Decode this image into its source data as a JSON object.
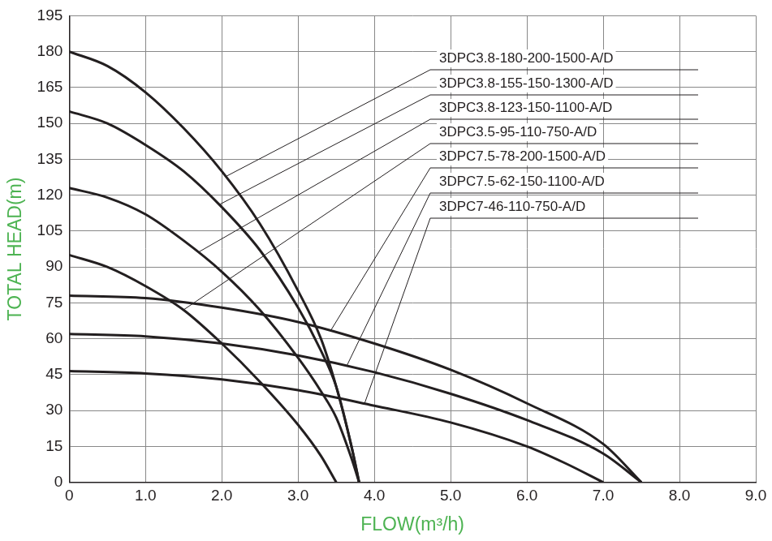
{
  "chart_data": {
    "type": "line",
    "x_label": "FLOW(m³/h)",
    "y_label": "TOTAL HEAD(m)",
    "xlim": [
      0,
      9
    ],
    "xticks": [
      0,
      {
        "value": 1,
        "label": "1.0"
      },
      {
        "value": 2,
        "label": "2.0"
      },
      {
        "value": 3,
        "label": "3.0"
      },
      {
        "value": 4,
        "label": "4.0"
      },
      {
        "value": 5,
        "label": "5.0"
      },
      {
        "value": 6,
        "label": "6.0"
      },
      {
        "value": 7,
        "label": "7.0"
      },
      {
        "value": 8,
        "label": "8.0"
      },
      {
        "value": 9,
        "label": "9.0"
      }
    ],
    "ylim": [
      0,
      195
    ],
    "yticks": [
      0,
      15,
      30,
      45,
      60,
      75,
      90,
      105,
      120,
      135,
      150,
      165,
      180,
      195
    ],
    "grid": true,
    "marker": "none",
    "line_style": "solid",
    "series": [
      {
        "name": "3DPC3.8-180-200-1500-A/D",
        "color": "#231f20",
        "x": [
          0,
          0.5,
          1,
          1.5,
          2,
          2.5,
          3,
          3.3,
          3.5,
          3.7,
          3.8
        ],
        "values": [
          180,
          174,
          163,
          148,
          130,
          108,
          80,
          60,
          40,
          15,
          0
        ]
      },
      {
        "name": "3DPC3.8-155-150-1300-A/D",
        "color": "#231f20",
        "x": [
          0,
          0.5,
          1,
          1.5,
          2,
          2.5,
          3,
          3.3,
          3.5,
          3.7,
          3.8
        ],
        "values": [
          155,
          150,
          141,
          130,
          115,
          97,
          73,
          55,
          40,
          15,
          0
        ]
      },
      {
        "name": "3DPC3.8-123-150-1100-A/D",
        "color": "#231f20",
        "x": [
          0,
          0.5,
          1,
          1.5,
          2,
          2.5,
          3,
          3.3,
          3.5,
          3.7,
          3.8
        ],
        "values": [
          123,
          119,
          112,
          101,
          88,
          72,
          52,
          38,
          27,
          10,
          0
        ]
      },
      {
        "name": "3DPC3.5-95-110-750-A/D",
        "color": "#231f20",
        "x": [
          0,
          0.5,
          1,
          1.5,
          2,
          2.5,
          3,
          3.3,
          3.5
        ],
        "values": [
          95,
          90,
          82,
          72,
          58,
          42,
          24,
          11,
          0
        ]
      },
      {
        "name": "3DPC7.5-78-200-1500-A/D",
        "color": "#231f20",
        "x": [
          0,
          1,
          2,
          3,
          4,
          5,
          6,
          7,
          7.5
        ],
        "values": [
          78,
          77,
          73,
          67,
          58,
          47,
          33,
          16,
          0
        ]
      },
      {
        "name": "3DPC7.5-62-150-1100-A/D",
        "color": "#231f20",
        "x": [
          0,
          1,
          2,
          3,
          4,
          5,
          6,
          7,
          7.5
        ],
        "values": [
          62,
          61,
          58,
          53,
          46,
          37,
          26,
          12,
          0
        ]
      },
      {
        "name": "3DPC7-46-110-750-A/D",
        "color": "#231f20",
        "x": [
          0,
          1,
          2,
          3,
          4,
          5,
          6,
          6.5,
          7
        ],
        "values": [
          46.5,
          45.5,
          43,
          38.5,
          32,
          25,
          15,
          8,
          0
        ]
      }
    ]
  }
}
